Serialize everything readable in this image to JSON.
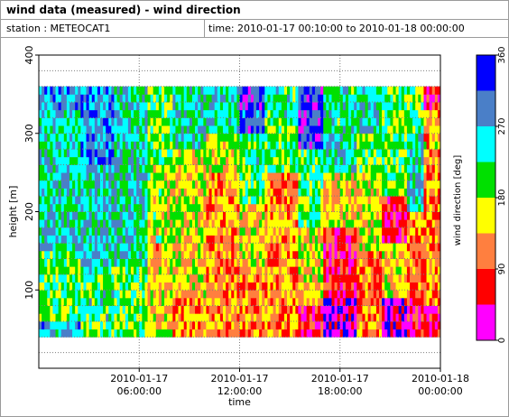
{
  "window": {
    "title": "wind data (measured) - wind direction",
    "station_label": "station : METEOCAT1",
    "time_label": "time: 2010-01-17 00:10:00 to 2010-01-18 00:00:00"
  },
  "chart_data": {
    "type": "heatmap",
    "title": "",
    "xlabel": "time",
    "ylabel": "height [m]",
    "colorbar_label": "wind direction [deg]",
    "x_range_hours": [
      0,
      24
    ],
    "x_ticks": [
      {
        "hour": 6,
        "line1": "2010-01-17",
        "line2": "06:00:00"
      },
      {
        "hour": 12,
        "line1": "2010-01-17",
        "line2": "12:00:00"
      },
      {
        "hour": 18,
        "line1": "2010-01-17",
        "line2": "18:00:00"
      },
      {
        "hour": 24,
        "line1": "2010-01-18",
        "line2": "00:00:00"
      }
    ],
    "y_range": [
      0,
      400
    ],
    "y_ticks": [
      100,
      200,
      300,
      400
    ],
    "y_tick_labels": [
      "100",
      "200",
      "300",
      "400"
    ],
    "grid": true,
    "color_scale": [
      {
        "from": 0,
        "to": 45,
        "color": "#ff00ff"
      },
      {
        "from": 45,
        "to": 90,
        "color": "#ff0000"
      },
      {
        "from": 90,
        "to": 135,
        "color": "#ff7f3f"
      },
      {
        "from": 135,
        "to": 180,
        "color": "#ffff00"
      },
      {
        "from": 180,
        "to": 225,
        "color": "#00e000"
      },
      {
        "from": 225,
        "to": 270,
        "color": "#00ffff"
      },
      {
        "from": 270,
        "to": 315,
        "color": "#4a7fc8"
      },
      {
        "from": 315,
        "to": 360,
        "color": "#0000ff"
      }
    ],
    "colorbar_ticks": [
      0,
      90,
      180,
      270,
      360
    ],
    "colorbar_tick_labels": [
      "0",
      "90",
      "180",
      "270",
      "360"
    ],
    "data_height_range": [
      40,
      360
    ],
    "segments": [
      {
        "start_hour": 0.0,
        "end_hour": 2.5,
        "bands": [
          [
            40,
            60,
            270
          ],
          [
            60,
            150,
            210
          ],
          [
            150,
            330,
            250
          ],
          [
            330,
            360,
            280
          ]
        ]
      },
      {
        "start_hour": 2.5,
        "end_hour": 4.5,
        "bands": [
          [
            40,
            60,
            200
          ],
          [
            60,
            130,
            220
          ],
          [
            130,
            260,
            255
          ],
          [
            260,
            360,
            290
          ]
        ]
      },
      {
        "start_hour": 4.5,
        "end_hour": 6.5,
        "bands": [
          [
            40,
            60,
            190
          ],
          [
            60,
            130,
            200
          ],
          [
            130,
            230,
            250
          ],
          [
            230,
            360,
            245
          ]
        ]
      },
      {
        "start_hour": 6.5,
        "end_hour": 8.0,
        "bands": [
          [
            40,
            70,
            170
          ],
          [
            70,
            160,
            140
          ],
          [
            160,
            260,
            175
          ],
          [
            260,
            360,
            200
          ]
        ]
      },
      {
        "start_hour": 8.0,
        "end_hour": 10.0,
        "bands": [
          [
            40,
            90,
            120
          ],
          [
            90,
            180,
            150
          ],
          [
            180,
            280,
            165
          ],
          [
            280,
            360,
            240
          ]
        ]
      },
      {
        "start_hour": 10.0,
        "end_hour": 12.0,
        "bands": [
          [
            40,
            170,
            115
          ],
          [
            170,
            250,
            125
          ],
          [
            250,
            300,
            170
          ],
          [
            300,
            360,
            245
          ]
        ]
      },
      {
        "start_hour": 12.0,
        "end_hour": 13.5,
        "bands": [
          [
            40,
            120,
            110
          ],
          [
            120,
            210,
            150
          ],
          [
            210,
            300,
            220
          ],
          [
            300,
            360,
            320
          ]
        ]
      },
      {
        "start_hour": 13.5,
        "end_hour": 15.5,
        "bands": [
          [
            40,
            150,
            115
          ],
          [
            150,
            250,
            125
          ],
          [
            250,
            320,
            200
          ],
          [
            320,
            360,
            230
          ]
        ]
      },
      {
        "start_hour": 15.5,
        "end_hour": 17.0,
        "bands": [
          [
            40,
            80,
            60
          ],
          [
            80,
            180,
            150
          ],
          [
            180,
            280,
            210
          ],
          [
            280,
            360,
            330
          ]
        ]
      },
      {
        "start_hour": 17.0,
        "end_hour": 19.0,
        "bands": [
          [
            40,
            90,
            10
          ],
          [
            90,
            180,
            70
          ],
          [
            180,
            250,
            150
          ],
          [
            250,
            360,
            230
          ]
        ]
      },
      {
        "start_hour": 19.0,
        "end_hour": 20.5,
        "bands": [
          [
            40,
            150,
            115
          ],
          [
            150,
            250,
            160
          ],
          [
            250,
            300,
            200
          ],
          [
            300,
            360,
            240
          ]
        ]
      },
      {
        "start_hour": 20.5,
        "end_hour": 22.0,
        "bands": [
          [
            40,
            90,
            20
          ],
          [
            90,
            160,
            150
          ],
          [
            160,
            220,
            60
          ],
          [
            220,
            360,
            210
          ]
        ]
      },
      {
        "start_hour": 22.0,
        "end_hour": 23.0,
        "bands": [
          [
            40,
            100,
            70
          ],
          [
            100,
            200,
            120
          ],
          [
            200,
            300,
            250
          ],
          [
            300,
            360,
            200
          ]
        ]
      },
      {
        "start_hour": 23.0,
        "end_hour": 24.0,
        "bands": [
          [
            40,
            80,
            60
          ],
          [
            80,
            250,
            110
          ],
          [
            250,
            330,
            130
          ],
          [
            330,
            360,
            70
          ]
        ]
      }
    ]
  }
}
